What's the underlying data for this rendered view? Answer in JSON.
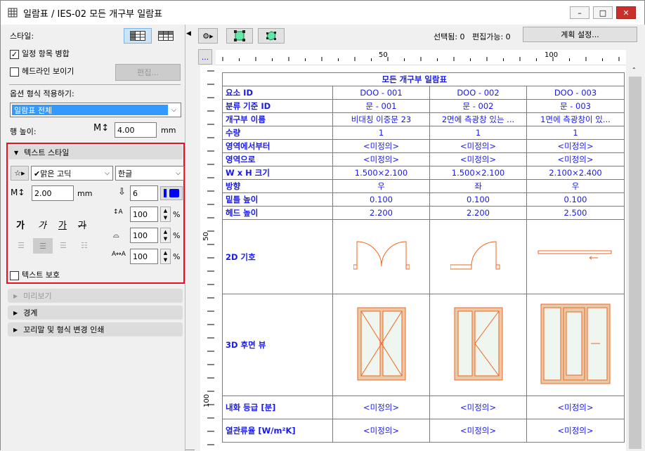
{
  "window": {
    "title": "일람표 / IES-02 모든 개구부 일람표",
    "minimize": "–",
    "maximize": "□",
    "close": "✕"
  },
  "left": {
    "style_label": "스타일:",
    "merge_label": "일정 항목 병합",
    "merge_checked": true,
    "headline_label": "헤드라인 보이기",
    "headline_checked": false,
    "edit_button": "편집...",
    "apply_label": "옵션 형식 적용하기:",
    "apply_value": "일람표 전체",
    "row_height_label": "행 높이:",
    "row_height_value": "4.00",
    "row_height_unit": "mm",
    "text_style": {
      "header": "텍스트 스타일",
      "font": "✔맑은 고딕",
      "script": "한글",
      "size": "2.00",
      "size_unit": "mm",
      "pen": "6",
      "pen_color": "#0000ff",
      "styles": [
        "가",
        "가",
        "가",
        "가"
      ],
      "line_spacing": "100",
      "width_factor": "100",
      "char_spacing": "100",
      "percent": "%",
      "protect_label": "텍스트 보호",
      "protect_checked": false
    },
    "sections": [
      "미리보기",
      "경계",
      "꼬리말 및 형식 변경 인쇄"
    ]
  },
  "toolbar": {
    "selected": "선택됨: 0",
    "editable": "편집가능: 0",
    "plan_settings": "계획 설정...",
    "ruler_button": "..."
  },
  "ruler": {
    "h_ticks": [
      "50",
      "100"
    ],
    "v_ticks": [
      "50",
      "100"
    ]
  },
  "schedule": {
    "title": "모든 개구부 일람표",
    "rows": [
      {
        "label": "요소 ID",
        "values": [
          "DOO - 001",
          "DOO - 002",
          "DOO - 003"
        ]
      },
      {
        "label": "분류 기준 ID",
        "values": [
          "문 - 001",
          "문 - 002",
          "문 - 003"
        ]
      },
      {
        "label": "개구부 이름",
        "values": [
          "비대칭 이중문 23",
          "2면에 측광창 있는 ...",
          "1면에 측광창이 있..."
        ]
      },
      {
        "label": "수량",
        "values": [
          "1",
          "1",
          "1"
        ]
      },
      {
        "label": "영역에서부터",
        "values": [
          "<미정의>",
          "<미정의>",
          "<미정의>"
        ]
      },
      {
        "label": "영역으로",
        "values": [
          "<미정의>",
          "<미정의>",
          "<미정의>"
        ]
      },
      {
        "label": "W x H 크기",
        "values": [
          "1.500×2.100",
          "1.500×2.100",
          "2.100×2.400"
        ]
      },
      {
        "label": "방향",
        "values": [
          "우",
          "좌",
          "우"
        ]
      },
      {
        "label": "밑틀 높이",
        "values": [
          "0.100",
          "0.100",
          "0.100"
        ]
      },
      {
        "label": "헤드 높이",
        "values": [
          "2.200",
          "2.200",
          "2.500"
        ]
      }
    ],
    "symbol_label": "2D 기호",
    "view_label": "3D 후면 뷰",
    "fire_label": "내화 등급 [분]",
    "fire_values": [
      "<미정의>",
      "<미정의>",
      "<미정의>"
    ],
    "u_label": "열관류율 [W/m²K]",
    "u_values": [
      "<미정의>",
      "<미정의>",
      "<미정의>"
    ]
  },
  "colors": {
    "accent": "#1a1ae6",
    "door": "#f26522",
    "highlight": "#e81123"
  }
}
